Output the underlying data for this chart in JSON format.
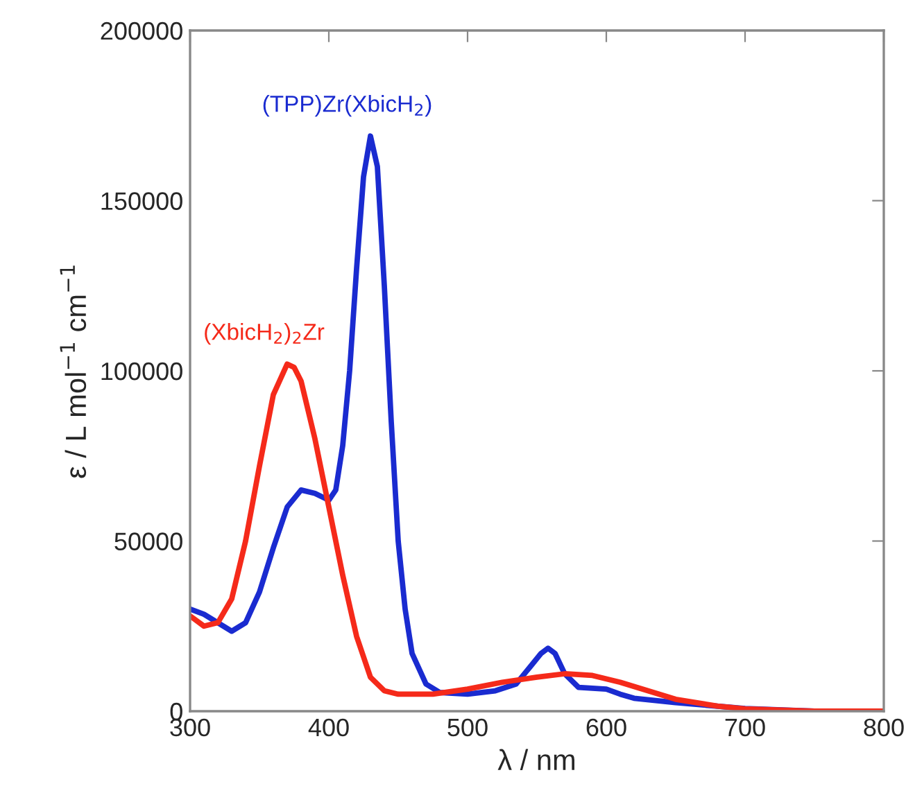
{
  "chart_data": {
    "type": "line",
    "xlabel": "λ / nm",
    "ylabel": "ε / L mol$^{−1}$ cm$^{−1}$",
    "xlim": [
      300,
      800
    ],
    "ylim": [
      0,
      200000
    ],
    "xticks": [
      300,
      400,
      500,
      600,
      700,
      800
    ],
    "yticks": [
      0,
      50000,
      100000,
      150000,
      200000
    ],
    "grid": false,
    "legend": false,
    "marker": "none",
    "line_style": "solid",
    "series": [
      {
        "name": "(TPP)Zr(XbicH$_{2}$)",
        "color": "#1a2bd0",
        "x": [
          300,
          310,
          320,
          330,
          340,
          350,
          360,
          370,
          380,
          390,
          400,
          405,
          410,
          415,
          420,
          425,
          430,
          435,
          440,
          445,
          450,
          455,
          460,
          470,
          480,
          500,
          520,
          535,
          545,
          553,
          558,
          563,
          570,
          580,
          600,
          610,
          620,
          650,
          700,
          750,
          800
        ],
        "values": [
          30000,
          28500,
          26000,
          23500,
          26000,
          35000,
          48000,
          60000,
          65000,
          64000,
          62000,
          65000,
          78000,
          100000,
          130000,
          157000,
          169000,
          160000,
          125000,
          85000,
          50000,
          30000,
          17000,
          8000,
          5500,
          5000,
          6000,
          8000,
          13000,
          17000,
          18500,
          17000,
          11000,
          7000,
          6500,
          5000,
          3800,
          2500,
          800,
          0,
          0
        ]
      },
      {
        "name": "(XbicH$_{2}$)$_{2}$Zr",
        "color": "#f52a1a",
        "x": [
          300,
          310,
          320,
          330,
          340,
          350,
          360,
          370,
          375,
          380,
          390,
          400,
          410,
          420,
          430,
          440,
          450,
          475,
          500,
          525,
          550,
          570,
          590,
          610,
          630,
          650,
          680,
          700,
          750,
          800
        ],
        "values": [
          28000,
          25000,
          26000,
          33000,
          50000,
          72000,
          93000,
          102000,
          101000,
          97000,
          80000,
          60000,
          40000,
          22000,
          10000,
          6000,
          5000,
          5000,
          6500,
          8500,
          10000,
          11000,
          10500,
          8500,
          6000,
          3500,
          1500,
          700,
          0,
          0
        ]
      }
    ]
  }
}
